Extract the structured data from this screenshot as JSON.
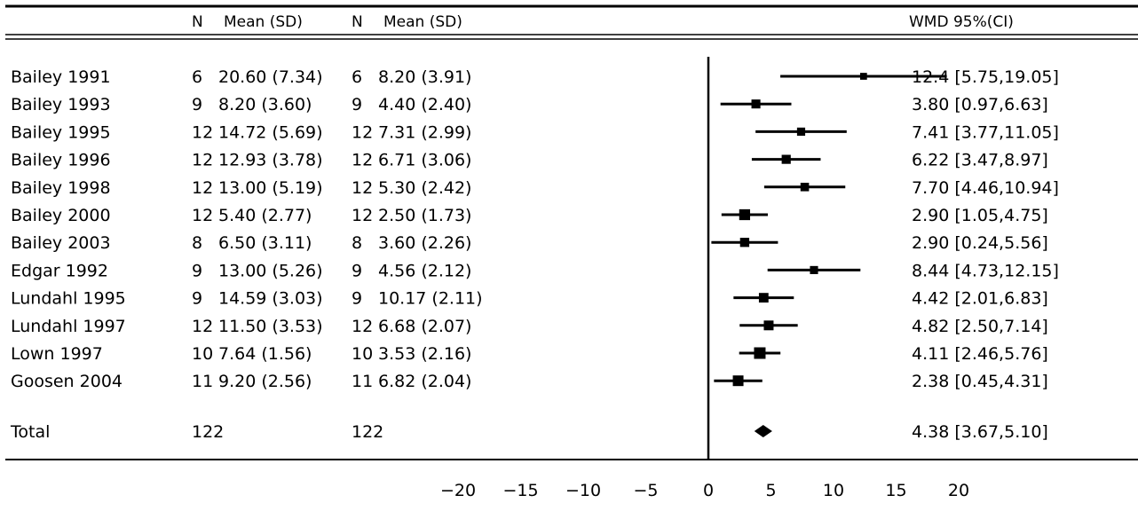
{
  "chart_data": {
    "type": "forest",
    "header": {
      "n1": "N",
      "mean1": "Mean (SD)",
      "n2": "N",
      "mean2": "Mean (SD)",
      "effect": "WMD  95%(CI)"
    },
    "studies": [
      {
        "study": "Bailey 1991",
        "n1": "6",
        "mean1": "20.60 (7.34)",
        "n2": "6",
        "mean2": "8.20 (3.91)",
        "estimate": 12.4,
        "lower": 5.75,
        "upper": 19.05,
        "label": "12.4 [5.75,19.05]"
      },
      {
        "study": "Bailey 1993",
        "n1": "9",
        "mean1": "8.20 (3.60)",
        "n2": "9",
        "mean2": "4.40 (2.40)",
        "estimate": 3.8,
        "lower": 0.97,
        "upper": 6.63,
        "label": "3.80 [0.97,6.63]"
      },
      {
        "study": "Bailey 1995",
        "n1": "12",
        "mean1": "14.72 (5.69)",
        "n2": "12",
        "mean2": "7.31 (2.99)",
        "estimate": 7.41,
        "lower": 3.77,
        "upper": 11.05,
        "label": "7.41 [3.77,11.05]"
      },
      {
        "study": "Bailey 1996",
        "n1": "12",
        "mean1": "12.93 (3.78)",
        "n2": "12",
        "mean2": "6.71 (3.06)",
        "estimate": 6.22,
        "lower": 3.47,
        "upper": 8.97,
        "label": "6.22 [3.47,8.97]"
      },
      {
        "study": "Bailey 1998",
        "n1": "12",
        "mean1": "13.00 (5.19)",
        "n2": "12",
        "mean2": "5.30 (2.42)",
        "estimate": 7.7,
        "lower": 4.46,
        "upper": 10.94,
        "label": "7.70 [4.46,10.94]"
      },
      {
        "study": "Bailey 2000",
        "n1": "12",
        "mean1": "5.40 (2.77)",
        "n2": "12",
        "mean2": "2.50 (1.73)",
        "estimate": 2.9,
        "lower": 1.05,
        "upper": 4.75,
        "label": "2.90 [1.05,4.75]"
      },
      {
        "study": "Bailey 2003",
        "n1": "8",
        "mean1": "6.50 (3.11)",
        "n2": "8",
        "mean2": "3.60 (2.26)",
        "estimate": 2.9,
        "lower": 0.24,
        "upper": 5.56,
        "label": "2.90 [0.24,5.56]"
      },
      {
        "study": "Edgar 1992",
        "n1": "9",
        "mean1": "13.00 (5.26)",
        "n2": "9",
        "mean2": "4.56 (2.12)",
        "estimate": 8.44,
        "lower": 4.73,
        "upper": 12.15,
        "label": "8.44 [4.73,12.15]"
      },
      {
        "study": "Lundahl 1995",
        "n1": "9",
        "mean1": "14.59 (3.03)",
        "n2": "9",
        "mean2": "10.17 (2.11)",
        "estimate": 4.42,
        "lower": 2.01,
        "upper": 6.83,
        "label": "4.42 [2.01,6.83]"
      },
      {
        "study": "Lundahl 1997",
        "n1": "12",
        "mean1": "11.50 (3.53)",
        "n2": "12",
        "mean2": "6.68 (2.07)",
        "estimate": 4.82,
        "lower": 2.5,
        "upper": 7.14,
        "label": "4.82 [2.50,7.14]"
      },
      {
        "study": "Lown 1997",
        "n1": "10",
        "mean1": "7.64 (1.56)",
        "n2": "10",
        "mean2": "3.53 (2.16)",
        "estimate": 4.11,
        "lower": 2.46,
        "upper": 5.76,
        "label": "4.11 [2.46,5.76]"
      },
      {
        "study": "Goosen 2004",
        "n1": "11",
        "mean1": "9.20 (2.56)",
        "n2": "11",
        "mean2": "6.82 (2.04)",
        "estimate": 2.38,
        "lower": 0.45,
        "upper": 4.31,
        "label": "2.38 [0.45,4.31]"
      }
    ],
    "total": {
      "study": "Total",
      "n1": "122",
      "n2": "122",
      "estimate": 4.38,
      "lower": 3.67,
      "upper": 5.1,
      "label": "4.38 [3.67,5.10]"
    },
    "xlim": [
      -20,
      20
    ],
    "xticks": [
      -20,
      -15,
      -10,
      -5,
      0,
      5,
      10,
      15,
      20
    ],
    "xtick_labels": [
      "−20",
      "−15",
      "−10",
      "−5",
      "0",
      "5",
      "10",
      "15",
      "20"
    ],
    "reference_line": 0,
    "color": "#000000"
  }
}
